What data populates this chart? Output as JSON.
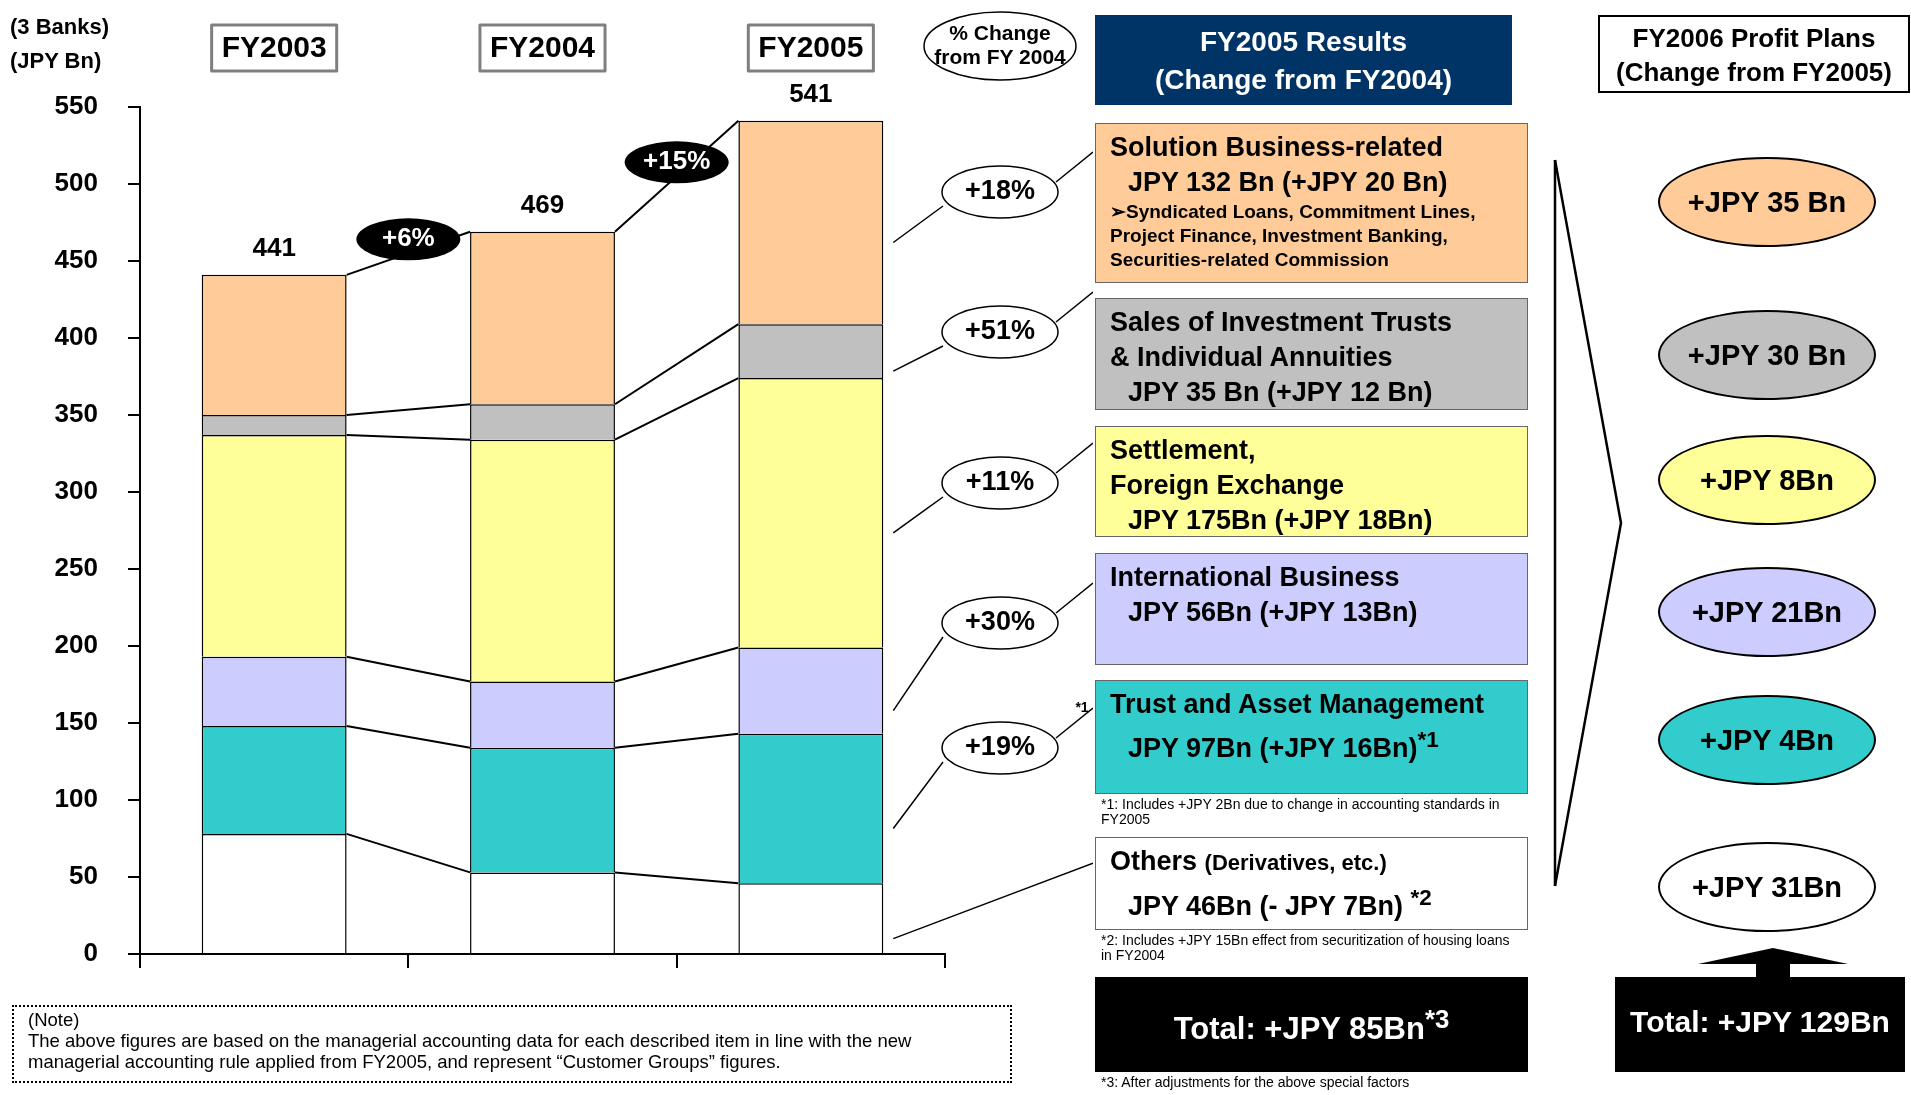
{
  "chart_data": {
    "type": "bar",
    "stacked": true,
    "ylabel": "(3 Banks)\n(JPY Bn)",
    "categories": [
      "FY2003",
      "FY2004",
      "FY2005"
    ],
    "ylim": [
      0,
      550
    ],
    "yticks": [
      0,
      50,
      100,
      150,
      200,
      250,
      300,
      350,
      400,
      450,
      500,
      550
    ],
    "grid": false,
    "legend": "right",
    "totals": [
      "441",
      "469",
      "541"
    ],
    "series": [
      {
        "name": "Others (Derivatives, etc.)",
        "color": "#ffffff",
        "values": [
          78,
          53,
          46
        ]
      },
      {
        "name": "Trust and Asset Management",
        "color": "#33cccc",
        "values": [
          70,
          81,
          97
        ]
      },
      {
        "name": "International Business",
        "color": "#ccccff",
        "values": [
          45,
          43,
          56
        ]
      },
      {
        "name": "Settlement,\nForeign Exchange",
        "color": "#ffff99",
        "values": [
          144,
          157,
          175
        ]
      },
      {
        "name": "Sales of Investment Trusts\n& Individual Annuities",
        "color": "#c0c0c0",
        "values": [
          13,
          23,
          35
        ]
      },
      {
        "name": "Solution Business-related",
        "color": "#ffcc99",
        "values": [
          91,
          112,
          132
        ]
      }
    ],
    "annotations": [
      "% Change\nfrom FY 2004",
      "+6%",
      "+15%",
      "+18%",
      "+51%",
      "+11%",
      "+30%",
      "+19%",
      "*1",
      "FY2005 Results\n(Change from FY2004)",
      "JPY 132 Bn  (+JPY 20 Bn)",
      "➢Syndicated Loans, Commitment Lines, Project Finance, Investment Banking, Securities-related Commission",
      "JPY 35 Bn  (+JPY 12 Bn)",
      "JPY 175Bn  (+JPY 18Bn)",
      "JPY 56Bn  (+JPY 13Bn)",
      "JPY 97Bn  (+JPY 16Bn)$^{*1}$",
      "*1: Includes +JPY 2Bn due to change in accounting standards in FY2005",
      "JPY 46Bn  (- JPY 7Bn) $^{*2}$",
      "*2: Includes +JPY 15Bn effect from securitization of housing loans in FY2004",
      "Total: +JPY 85Bn$^{*3}$",
      "*3: After adjustments for the above special factors",
      "FY2006 Profit Plans\n(Change from FY2005)",
      "+JPY 35 Bn",
      "+JPY 30 Bn",
      "+JPY 8Bn",
      "+JPY 21Bn",
      "+JPY 4Bn",
      "+JPY 31Bn",
      "Total: +JPY 129Bn",
      "(Note)\nThe above figures are based on the managerial accounting data for each described item in line with the new managerial accounting rule applied from FY2005, and represent “Customer Groups” figures."
    ]
  }
}
